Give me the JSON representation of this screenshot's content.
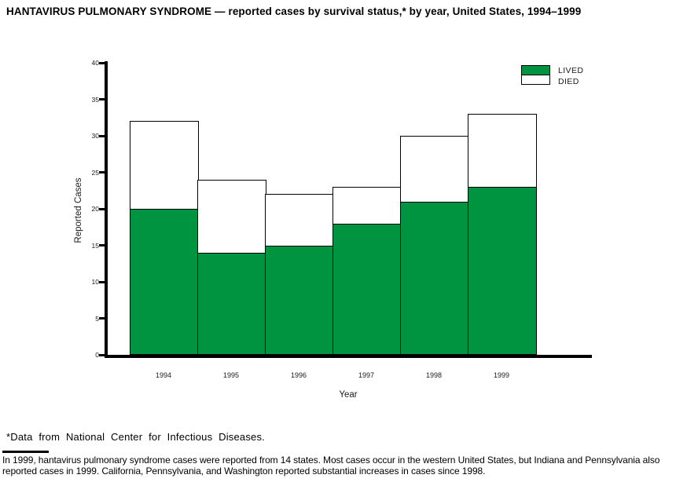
{
  "header": {
    "title": "HANTAVIRUS PULMONARY SYNDROME — reported cases by survival status,* by year, United States, 1994–1999"
  },
  "chart_data": {
    "type": "bar",
    "stacked": true,
    "title": "HANTAVIRUS PULMONARY SYNDROME — reported cases by survival status,* by year, United States, 1994–1999",
    "categories": [
      "1994",
      "1995",
      "1996",
      "1997",
      "1998",
      "1999"
    ],
    "series": [
      {
        "name": "LIVED",
        "color": "#009340",
        "values": [
          20,
          14,
          15,
          18,
          21,
          23
        ]
      },
      {
        "name": "DIED",
        "color": "#ffffff",
        "values": [
          12,
          10,
          7,
          5,
          9,
          10
        ]
      }
    ],
    "totals": [
      32,
      24,
      22,
      23,
      30,
      33
    ],
    "xlabel": "Year",
    "ylabel": "Reported Cases",
    "ylim": [
      0,
      40
    ],
    "yticks": [
      0,
      5,
      10,
      15,
      20,
      25,
      30,
      35,
      40
    ],
    "grid": false,
    "legend_position": "top-right",
    "bar_outline_color": "#000000"
  },
  "footnote": {
    "text": "*Data from National Center for Infectious Diseases."
  },
  "note": {
    "text": "In 1999, hantavirus pulmonary syndrome cases were reported from 14 states. Most cases occur in the western United States, but Indiana and Pennsylvania also reported cases in 1999. California, Pennsylvania, and Washington reported substantial increases in cases since 1998."
  }
}
